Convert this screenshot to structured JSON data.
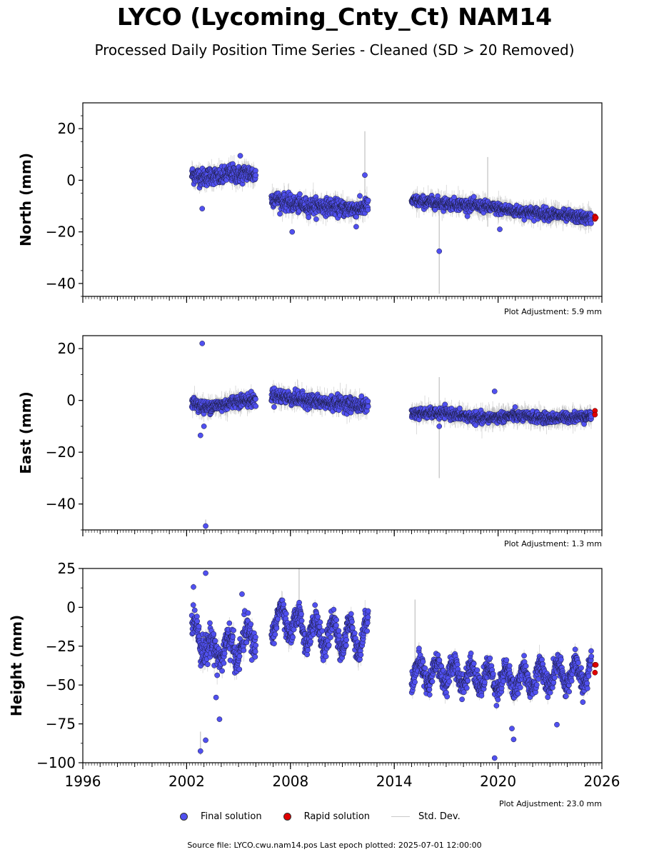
{
  "title": "LYCO (Lycoming_Cnty_Ct) NAM14",
  "subtitle": "Processed Daily Position Time Series - Cleaned (SD > 20 Removed)",
  "legend": {
    "final": "Final solution",
    "rapid": "Rapid solution",
    "std": "Std. Dev."
  },
  "footer": "Source file: LYCO.cwu.nam14.pos  Last epoch plotted: 2025-07-01 12:00:00",
  "colors": {
    "final": "#5050f0",
    "rapid": "#e00000",
    "std": "#b0b0b0"
  },
  "chart_data": [
    {
      "type": "scatter",
      "ylabel": "North (mm)",
      "xlim": [
        1996,
        2026
      ],
      "ylim": [
        -45,
        30
      ],
      "yticks": [
        20,
        0,
        -20,
        -40
      ],
      "xticks": [
        1996,
        2002,
        2008,
        2014,
        2020,
        2026
      ],
      "show_xtick_labels": false,
      "annotation": "Plot Adjustment: 5.9 mm",
      "segments": [
        {
          "start": 2002.3,
          "end": 2006.0,
          "points": [
            [
              2002.5,
              2
            ],
            [
              2003.0,
              1
            ],
            [
              2003.5,
              2
            ],
            [
              2004.0,
              1
            ],
            [
              2004.5,
              3
            ],
            [
              2005.0,
              2
            ],
            [
              2005.5,
              3
            ],
            [
              2005.9,
              2
            ]
          ],
          "noise": 2.8
        },
        {
          "start": 2006.9,
          "end": 2012.5,
          "points": [
            [
              2007.0,
              -7
            ],
            [
              2008.0,
              -9
            ],
            [
              2009.0,
              -10
            ],
            [
              2010.0,
              -10
            ],
            [
              2011.0,
              -11
            ],
            [
              2012.0,
              -11
            ],
            [
              2012.4,
              -10
            ]
          ],
          "noise": 2.5
        },
        {
          "start": 2015.0,
          "end": 2025.4,
          "points": [
            [
              2015.0,
              -8
            ],
            [
              2017.0,
              -9
            ],
            [
              2019.0,
              -10
            ],
            [
              2021.0,
              -12
            ],
            [
              2023.0,
              -13
            ],
            [
              2025.4,
              -15
            ]
          ],
          "noise": 1.8
        }
      ],
      "outliers": [
        [
          2002.9,
          -11
        ],
        [
          2005.1,
          9.5
        ],
        [
          2008.1,
          -20
        ],
        [
          2012.3,
          2
        ],
        [
          2011.8,
          -18
        ],
        [
          2016.6,
          -27.5
        ],
        [
          2020.1,
          -19
        ]
      ],
      "rapid": [
        [
          2025.6,
          -14
        ],
        [
          2025.6,
          -15
        ],
        [
          2025.65,
          -14.5
        ]
      ],
      "spikes": [
        [
          2012.3,
          -5,
          19
        ],
        [
          2016.6,
          -44,
          -12
        ],
        [
          2019.4,
          -18,
          9
        ]
      ]
    },
    {
      "type": "scatter",
      "ylabel": "East (mm)",
      "xlim": [
        1996,
        2026
      ],
      "ylim": [
        -50,
        25
      ],
      "yticks": [
        20,
        0,
        -20,
        -40
      ],
      "xticks": [
        1996,
        2002,
        2008,
        2014,
        2020,
        2026
      ],
      "show_xtick_labels": false,
      "annotation": "Plot Adjustment: 1.3 mm",
      "segments": [
        {
          "start": 2002.3,
          "end": 2006.0,
          "points": [
            [
              2002.5,
              -1
            ],
            [
              2003.0,
              -3
            ],
            [
              2003.5,
              -2
            ],
            [
              2004.0,
              -2
            ],
            [
              2004.5,
              -1
            ],
            [
              2005.0,
              0
            ],
            [
              2005.9,
              0
            ]
          ],
          "noise": 2.0
        },
        {
          "start": 2006.9,
          "end": 2012.5,
          "points": [
            [
              2007.0,
              2
            ],
            [
              2008.0,
              1
            ],
            [
              2009.0,
              0
            ],
            [
              2010.0,
              -1
            ],
            [
              2011.0,
              -1
            ],
            [
              2012.0,
              -2
            ],
            [
              2012.4,
              -2
            ]
          ],
          "noise": 2.2
        },
        {
          "start": 2015.0,
          "end": 2025.4,
          "points": [
            [
              2015.0,
              -5
            ],
            [
              2017.0,
              -5
            ],
            [
              2019.0,
              -7
            ],
            [
              2021.0,
              -6
            ],
            [
              2023.0,
              -7
            ],
            [
              2025.4,
              -6
            ]
          ],
          "noise": 1.6
        }
      ],
      "outliers": [
        [
          2002.9,
          22
        ],
        [
          2003.1,
          -48.5
        ],
        [
          2002.8,
          -13.5
        ],
        [
          2003.0,
          -10
        ],
        [
          2019.8,
          3.5
        ],
        [
          2016.6,
          -10
        ]
      ],
      "rapid": [
        [
          2025.6,
          -4
        ],
        [
          2025.6,
          -5.5
        ]
      ],
      "spikes": [
        [
          2016.6,
          -30,
          9
        ],
        [
          2003.1,
          -50,
          -46
        ]
      ]
    },
    {
      "type": "scatter",
      "ylabel": "Height (mm)",
      "xlim": [
        1996,
        2026
      ],
      "ylim": [
        -100,
        25
      ],
      "yticks": [
        25,
        0,
        -25,
        -50,
        -75,
        -100
      ],
      "xticks": [
        1996,
        2002,
        2008,
        2014,
        2020,
        2026
      ],
      "show_xtick_labels": true,
      "annotation": "Plot Adjustment: 23.0 mm",
      "segments": [
        {
          "start": 2002.3,
          "end": 2006.0,
          "points": [
            [
              2002.5,
              -15
            ],
            [
              2003.0,
              -22
            ],
            [
              2003.5,
              -30
            ],
            [
              2004.0,
              -25
            ],
            [
              2004.5,
              -28
            ],
            [
              2005.0,
              -25
            ],
            [
              2005.9,
              -18
            ]
          ],
          "noise": 8,
          "seasonal": 8
        },
        {
          "start": 2006.9,
          "end": 2012.5,
          "points": [
            [
              2007.0,
              -8
            ],
            [
              2008.0,
              -10
            ],
            [
              2009.0,
              -15
            ],
            [
              2010.0,
              -18
            ],
            [
              2011.0,
              -18
            ],
            [
              2012.0,
              -20
            ],
            [
              2012.4,
              -15
            ]
          ],
          "noise": 6,
          "seasonal": 9
        },
        {
          "start": 2015.0,
          "end": 2025.4,
          "points": [
            [
              2015.0,
              -42
            ],
            [
              2017.0,
              -42
            ],
            [
              2019.0,
              -45
            ],
            [
              2021.0,
              -47
            ],
            [
              2023.0,
              -44
            ],
            [
              2025.4,
              -42
            ]
          ],
          "noise": 6,
          "seasonal": 7
        }
      ],
      "outliers": [
        [
          2002.8,
          -92.5
        ],
        [
          2003.1,
          -85.5
        ],
        [
          2003.1,
          22
        ],
        [
          2003.7,
          -58
        ],
        [
          2003.9,
          -72
        ],
        [
          2005.2,
          8.5
        ],
        [
          2019.8,
          -97
        ],
        [
          2020.9,
          -85
        ],
        [
          2020.8,
          -78
        ],
        [
          2023.4,
          -75.5
        ],
        [
          2024.9,
          -61
        ]
      ],
      "rapid": [
        [
          2025.6,
          -37
        ],
        [
          2025.65,
          -37
        ],
        [
          2025.6,
          -42
        ]
      ],
      "spikes": [
        [
          2008.5,
          -10,
          25
        ],
        [
          2015.2,
          -40,
          5
        ],
        [
          2002.8,
          -95,
          -80
        ]
      ]
    }
  ]
}
